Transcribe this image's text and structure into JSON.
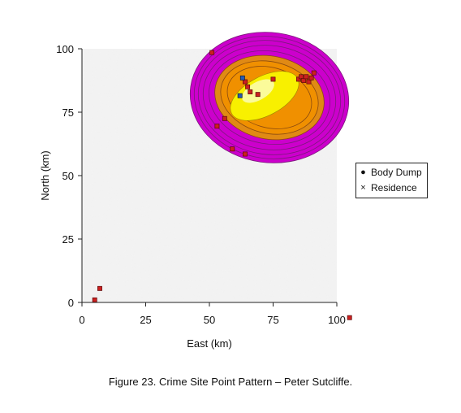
{
  "chart_data": {
    "type": "scatter",
    "xlabel": "East (km)",
    "ylabel": "North (km)",
    "xlim": [
      0,
      100
    ],
    "ylim": [
      0,
      100
    ],
    "xticks": [
      0,
      25,
      50,
      75,
      100
    ],
    "yticks": [
      0,
      25,
      50,
      75,
      100
    ],
    "grid": false,
    "legend_position": "right",
    "legend": [
      {
        "symbol": "●",
        "label": "Body Dump"
      },
      {
        "symbol": "×",
        "label": "Residence"
      }
    ],
    "density_colors": [
      "#cc00cc",
      "#e08a14",
      "#f09000",
      "#f8f000",
      "#fbfb9a"
    ],
    "point_color": "#cc2020",
    "residence_color": "#2a5ab0",
    "points": [
      {
        "x": 51,
        "y": 98.5
      },
      {
        "x": 53,
        "y": 69.5
      },
      {
        "x": 56,
        "y": 72.5
      },
      {
        "x": 59,
        "y": 60.5
      },
      {
        "x": 64,
        "y": 87
      },
      {
        "x": 65,
        "y": 85
      },
      {
        "x": 66,
        "y": 83
      },
      {
        "x": 69,
        "y": 82
      },
      {
        "x": 75,
        "y": 88
      },
      {
        "x": 85,
        "y": 88
      },
      {
        "x": 86,
        "y": 89
      },
      {
        "x": 87,
        "y": 87.5
      },
      {
        "x": 88,
        "y": 89
      },
      {
        "x": 89,
        "y": 87
      },
      {
        "x": 90,
        "y": 88.5
      },
      {
        "x": 91,
        "y": 90.5
      },
      {
        "x": 64,
        "y": 58.5
      },
      {
        "x": 7,
        "y": 5.5
      },
      {
        "x": 5,
        "y": 1
      },
      {
        "x": 105,
        "y": -6
      }
    ],
    "residences": [
      {
        "x": 62,
        "y": 81.5
      },
      {
        "x": 63,
        "y": 88.5
      }
    ]
  },
  "caption": "Figure 23.  Crime Site Point Pattern – Peter Sutcliffe."
}
